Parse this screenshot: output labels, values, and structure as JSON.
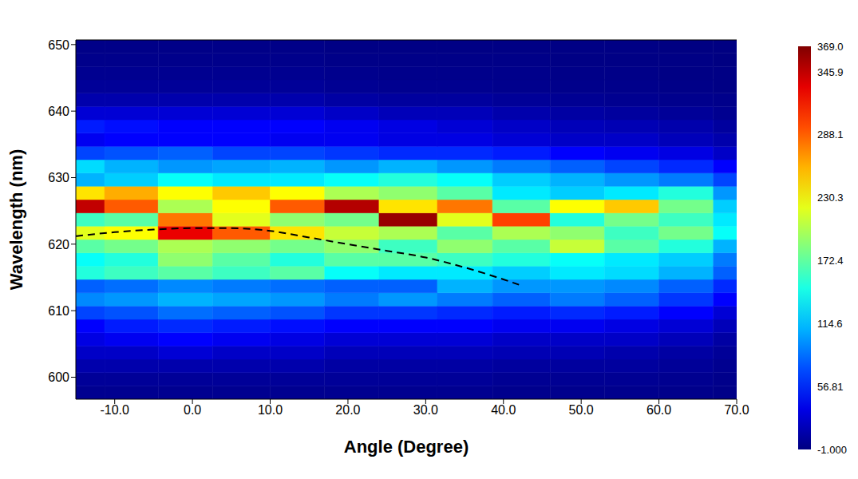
{
  "chart_data": {
    "type": "heatmap",
    "x_label": "Angle (Degree)",
    "y_label": "Wavelength (nm)",
    "xlim": [
      -15,
      70
    ],
    "xticks": [
      {
        "value": -10,
        "label": "-10.0"
      },
      {
        "value": 0,
        "label": "0.0"
      },
      {
        "value": 10,
        "label": "10.0"
      },
      {
        "value": 20,
        "label": "20.0"
      },
      {
        "value": 30,
        "label": "30.0"
      },
      {
        "value": 40,
        "label": "40.0"
      },
      {
        "value": 50,
        "label": "50.0"
      },
      {
        "value": 60,
        "label": "60.0"
      },
      {
        "value": 70,
        "label": "70.0"
      }
    ],
    "x2ticks": [
      -10,
      0,
      10,
      20,
      30,
      40,
      50,
      60,
      70
    ],
    "ylim": [
      596.7,
      650.7
    ],
    "yticks": [
      600,
      610,
      620,
      630,
      640,
      650
    ],
    "x_edges": [
      -15,
      -11.3,
      -4.4,
      2.6,
      10,
      17,
      24,
      31.5,
      38.6,
      46,
      53,
      60,
      67,
      70
    ],
    "y_edges": [
      596.7,
      598.7,
      600.7,
      602.7,
      604.7,
      606.7,
      608.7,
      610.7,
      612.7,
      614.7,
      616.7,
      618.7,
      620.7,
      622.7,
      624.7,
      626.7,
      628.7,
      630.7,
      632.7,
      634.7,
      636.7,
      638.7,
      640.7,
      642.7,
      644.7,
      646.7,
      648.7,
      650.7
    ],
    "cells": [
      [
        5,
        8,
        15,
        25,
        35,
        45,
        70,
        95,
        80,
        150,
        140,
        170,
        220,
        160,
        345,
        240,
        110,
        125,
        70,
        40,
        55,
        30,
        15,
        8,
        5,
        3,
        2
      ],
      [
        5,
        8,
        15,
        25,
        40,
        55,
        75,
        100,
        85,
        160,
        150,
        180,
        230,
        170,
        290,
        260,
        120,
        110,
        75,
        45,
        50,
        30,
        15,
        8,
        5,
        3,
        2
      ],
      [
        5,
        8,
        15,
        30,
        45,
        60,
        85,
        110,
        95,
        170,
        190,
        200,
        330,
        280,
        200,
        230,
        140,
        100,
        80,
        45,
        45,
        30,
        15,
        8,
        5,
        3,
        2
      ],
      [
        5,
        8,
        15,
        25,
        40,
        55,
        80,
        105,
        90,
        160,
        170,
        190,
        290,
        220,
        230,
        250,
        130,
        105,
        70,
        45,
        45,
        30,
        15,
        8,
        5,
        3,
        2
      ],
      [
        5,
        8,
        15,
        25,
        35,
        50,
        75,
        100,
        85,
        170,
        150,
        180,
        240,
        190,
        290,
        230,
        130,
        110,
        70,
        40,
        45,
        30,
        15,
        8,
        5,
        3,
        2
      ],
      [
        5,
        8,
        12,
        20,
        30,
        45,
        65,
        90,
        80,
        140,
        170,
        190,
        210,
        180,
        350,
        200,
        140,
        100,
        65,
        40,
        40,
        25,
        12,
        6,
        4,
        2,
        1
      ],
      [
        5,
        8,
        12,
        20,
        30,
        45,
        65,
        100,
        80,
        130,
        170,
        160,
        200,
        360,
        240,
        190,
        150,
        110,
        60,
        35,
        35,
        20,
        10,
        5,
        3,
        2,
        1
      ],
      [
        5,
        8,
        12,
        20,
        30,
        45,
        60,
        90,
        110,
        130,
        160,
        190,
        170,
        220,
        280,
        170,
        140,
        100,
        60,
        35,
        30,
        20,
        10,
        5,
        3,
        2,
        1
      ],
      [
        4,
        6,
        10,
        18,
        25,
        40,
        55,
        80,
        100,
        120,
        150,
        170,
        200,
        300,
        170,
        130,
        120,
        90,
        55,
        30,
        25,
        15,
        8,
        4,
        3,
        2,
        1
      ],
      [
        4,
        6,
        10,
        18,
        25,
        40,
        60,
        90,
        100,
        130,
        140,
        210,
        190,
        150,
        230,
        120,
        110,
        80,
        45,
        25,
        20,
        12,
        6,
        3,
        2,
        1,
        1
      ],
      [
        4,
        6,
        10,
        15,
        25,
        35,
        55,
        80,
        95,
        125,
        130,
        170,
        160,
        180,
        250,
        130,
        100,
        70,
        40,
        25,
        18,
        10,
        5,
        3,
        2,
        1,
        1
      ],
      [
        3,
        5,
        8,
        12,
        20,
        30,
        45,
        65,
        80,
        110,
        120,
        150,
        180,
        160,
        180,
        150,
        90,
        60,
        35,
        20,
        15,
        8,
        4,
        2,
        1,
        1,
        0
      ],
      [
        2,
        3,
        5,
        8,
        12,
        20,
        30,
        45,
        60,
        80,
        90,
        110,
        140,
        130,
        120,
        100,
        70,
        45,
        25,
        15,
        10,
        5,
        3,
        1,
        1,
        0,
        0
      ]
    ],
    "colorbar": {
      "range": [
        -1,
        369
      ],
      "ticks": [
        {
          "value": -1,
          "label": "-1.000"
        },
        56.81,
        114.6,
        172.4,
        230.3,
        288.1,
        345.9,
        {
          "value": 369,
          "label": "369.0"
        }
      ]
    },
    "curve": {
      "x": [
        -15,
        -10,
        -5,
        0,
        5,
        10,
        15,
        20,
        25,
        30,
        35,
        40,
        42
      ],
      "y": [
        621.2,
        621.8,
        622.2,
        622.4,
        622.4,
        622.0,
        621.0,
        620.0,
        619.0,
        618.0,
        616.5,
        614.7,
        613.9
      ],
      "color": "#000000",
      "line_style": "dashed"
    }
  }
}
